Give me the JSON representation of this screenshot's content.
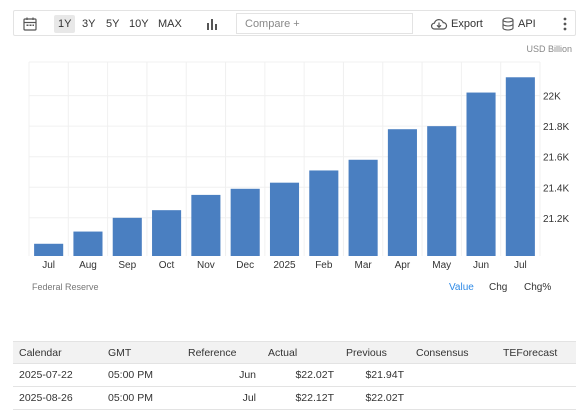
{
  "toolbar": {
    "ranges": [
      "1Y",
      "3Y",
      "5Y",
      "10Y",
      "MAX"
    ],
    "active_range": "1Y",
    "compare_placeholder": "Compare +",
    "export_label": "Export",
    "api_label": "API"
  },
  "chart_data": {
    "type": "bar",
    "unit_label": "USD Billion",
    "categories": [
      "Jul",
      "Aug",
      "Sep",
      "Oct",
      "Nov",
      "Dec",
      "2025",
      "Feb",
      "Mar",
      "Apr",
      "May",
      "Jun",
      "Jul"
    ],
    "values": [
      21030,
      21110,
      21200,
      21250,
      21350,
      21390,
      21430,
      21510,
      21580,
      21780,
      21800,
      22020,
      22120
    ],
    "ylim": [
      20950,
      22220
    ],
    "yticks": [
      21200,
      21400,
      21600,
      21800,
      22000
    ],
    "ytick_labels": [
      "21.2K",
      "21.4K",
      "21.6K",
      "21.8K",
      "22K"
    ],
    "bar_color": "#4a7fc1",
    "grid": true
  },
  "footer": {
    "source": "Federal Reserve",
    "modes": [
      "Value",
      "Chg",
      "Chg%"
    ],
    "active_mode": "Value",
    "accent_color": "#2e8ae6"
  },
  "calendar": {
    "headers": [
      "Calendar",
      "GMT",
      "Reference",
      "Actual",
      "Previous",
      "Consensus",
      "TEForecast"
    ],
    "rows": [
      [
        "2025-07-22",
        "05:00 PM",
        "Jun",
        "$22.02T",
        "$21.94T",
        "",
        ""
      ],
      [
        "2025-08-26",
        "05:00 PM",
        "Jul",
        "$22.12T",
        "$22.02T",
        "",
        ""
      ]
    ]
  }
}
